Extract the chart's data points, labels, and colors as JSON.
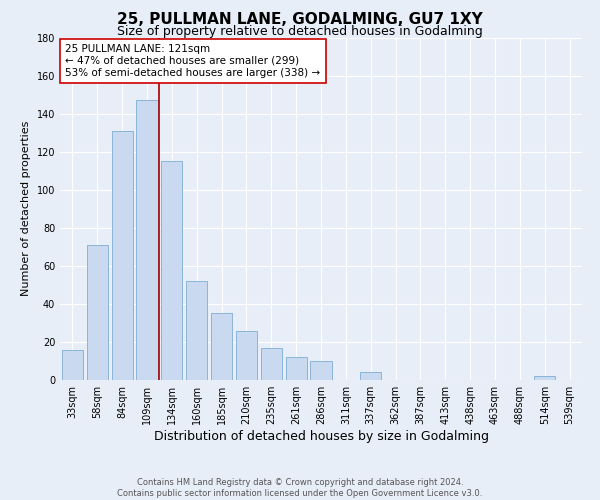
{
  "title": "25, PULLMAN LANE, GODALMING, GU7 1XY",
  "subtitle": "Size of property relative to detached houses in Godalming",
  "xlabel": "Distribution of detached houses by size in Godalming",
  "ylabel": "Number of detached properties",
  "bar_labels": [
    "33sqm",
    "58sqm",
    "84sqm",
    "109sqm",
    "134sqm",
    "160sqm",
    "185sqm",
    "210sqm",
    "235sqm",
    "261sqm",
    "286sqm",
    "311sqm",
    "337sqm",
    "362sqm",
    "387sqm",
    "413sqm",
    "438sqm",
    "463sqm",
    "488sqm",
    "514sqm",
    "539sqm"
  ],
  "bar_values": [
    16,
    71,
    131,
    147,
    115,
    52,
    35,
    26,
    17,
    12,
    10,
    0,
    4,
    0,
    0,
    0,
    0,
    0,
    0,
    2,
    0
  ],
  "bar_color": "#c9daf0",
  "bar_edge_color": "#8ab4d8",
  "bar_edge_width": 0.7,
  "vline_color": "#aa0000",
  "annotation_title": "25 PULLMAN LANE: 121sqm",
  "annotation_line1": "← 47% of detached houses are smaller (299)",
  "annotation_line2": "53% of semi-detached houses are larger (338) →",
  "annotation_box_facecolor": "#ffffff",
  "annotation_box_edgecolor": "#cc0000",
  "ylim": [
    0,
    180
  ],
  "yticks": [
    0,
    20,
    40,
    60,
    80,
    100,
    120,
    140,
    160,
    180
  ],
  "bg_color": "#e8eef7",
  "grid_color": "#ffffff",
  "footer_line1": "Contains HM Land Registry data © Crown copyright and database right 2024.",
  "footer_line2": "Contains public sector information licensed under the Open Government Licence v3.0.",
  "title_fontsize": 11,
  "subtitle_fontsize": 9,
  "xlabel_fontsize": 9,
  "ylabel_fontsize": 8,
  "tick_fontsize": 7,
  "annotation_fontsize": 7.5,
  "footer_fontsize": 6
}
